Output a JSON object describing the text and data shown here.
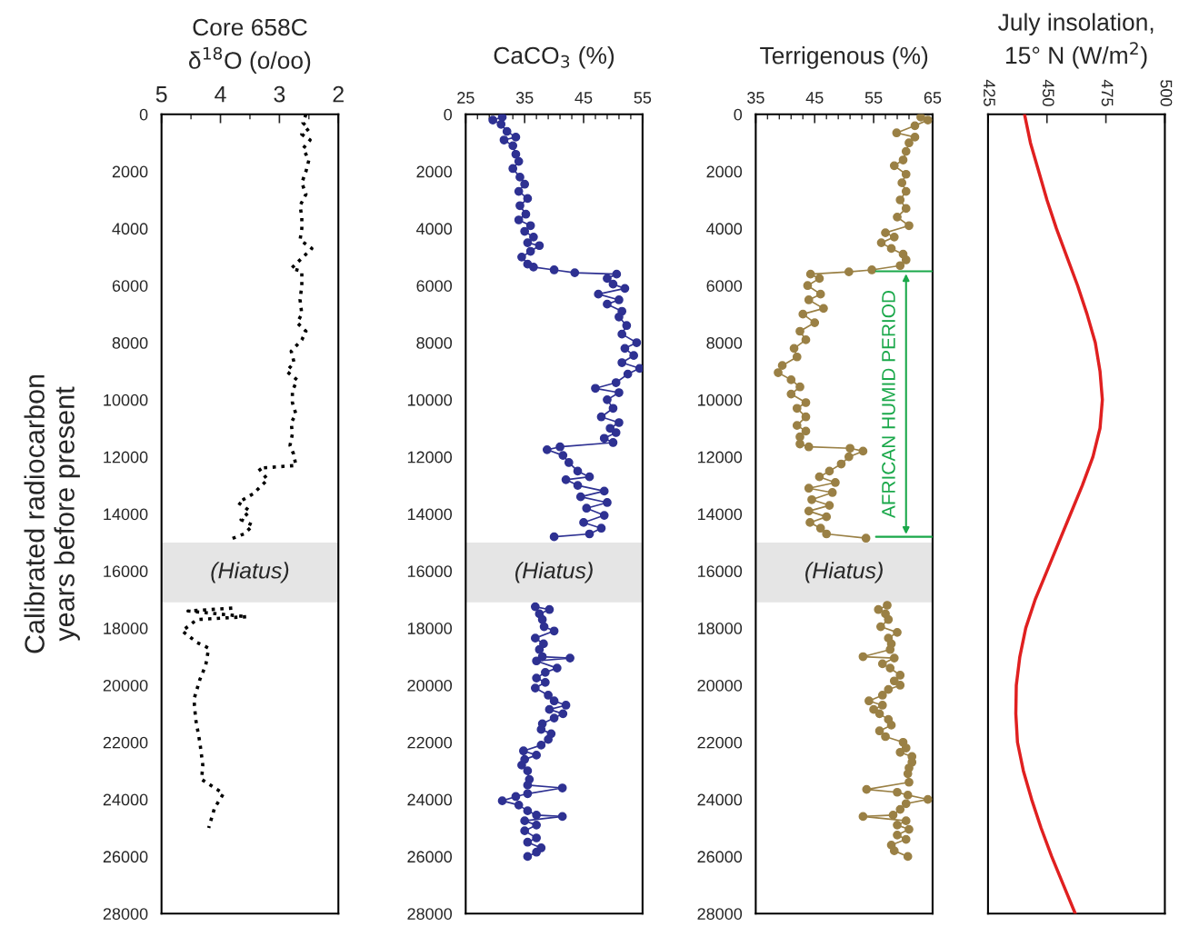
{
  "chart_data": [
    {
      "type": "line",
      "title": "Core 658C\nδ$^{18}$O (o/oo)",
      "ylabel": "Calibrated radiocarbon\nyears before present",
      "marker": "none",
      "line_style": "dotted",
      "xlim": [
        5,
        2
      ],
      "xticks": [
        5,
        4,
        3,
        2
      ],
      "ylim": [
        28000,
        0
      ],
      "yticks": [
        0,
        2000,
        4000,
        6000,
        8000,
        10000,
        12000,
        14000,
        16000,
        18000,
        20000,
        22000,
        24000,
        26000,
        28000
      ],
      "bands": [
        {
          "axis": "y",
          "from": 15000,
          "to": 17100,
          "label": "(Hiatus)",
          "color": "#e5e5e5"
        }
      ],
      "series": [
        {
          "color": "#000000",
          "x": [
            2.55,
            2.6,
            2.5,
            2.62,
            2.48,
            2.6,
            2.5,
            2.55,
            2.62,
            2.55,
            2.65,
            2.62,
            2.62,
            2.65,
            2.45,
            2.6,
            2.8,
            2.62,
            2.62,
            2.65,
            2.62,
            2.7,
            2.55,
            2.62,
            2.8,
            2.75,
            2.88,
            2.7,
            2.78,
            2.78,
            2.72,
            2.8,
            2.78,
            2.82,
            2.76,
            2.72,
            3.35,
            3.2,
            3.35,
            3.45,
            3.7,
            3.5,
            3.65,
            3.45,
            3.6,
            3.85,
            null,
            3.8,
            4.55,
            3.55,
            4.4,
            4.65,
            4.4,
            4.2,
            4.25,
            4.35,
            4.45,
            4.42,
            4.35,
            4.3,
            4.32,
            3.95,
            4.1,
            4.2
          ],
          "values": [
            0,
            300,
            500,
            700,
            900,
            1200,
            1600,
            2000,
            2400,
            2800,
            3200,
            3600,
            4000,
            4400,
            4700,
            5000,
            5400,
            5500,
            6000,
            6500,
            7000,
            7300,
            7600,
            7900,
            8300,
            8700,
            9000,
            9300,
            9700,
            10100,
            10500,
            10800,
            11200,
            11600,
            11900,
            12300,
            12400,
            12800,
            13100,
            13300,
            13600,
            13900,
            14200,
            14400,
            14700,
            14900,
            null,
            17300,
            17400,
            17600,
            17700,
            18100,
            18500,
            18700,
            19300,
            19800,
            20500,
            21200,
            22000,
            22800,
            23300,
            23800,
            24300,
            25000
          ]
        }
      ]
    },
    {
      "type": "line",
      "title": "CaCO$_{3}$ (%)",
      "marker": "circle",
      "line_style": "solid",
      "xlim": [
        25,
        55
      ],
      "xticks": [
        25,
        35,
        45,
        55
      ],
      "ylim": [
        28000,
        0
      ],
      "yticks": [
        0,
        2000,
        4000,
        6000,
        8000,
        10000,
        12000,
        14000,
        16000,
        18000,
        20000,
        22000,
        24000,
        26000,
        28000
      ],
      "bands": [
        {
          "axis": "y",
          "from": 15000,
          "to": 17100,
          "label": "(Hiatus)",
          "color": "#e5e5e5"
        }
      ],
      "series": [
        {
          "color": "#2e3192",
          "x": [
            31.2,
            29.6,
            31.0,
            32.0,
            33.5,
            31.5,
            33.0,
            33.5,
            34.0,
            33.0,
            34.2,
            35.0,
            34.0,
            35.5,
            34.2,
            35.2,
            34.0,
            36.0,
            35.0,
            36.5,
            35.5,
            37.5,
            36.0,
            34.5,
            35.5,
            36.5,
            40.0,
            43.5,
            50.6,
            49.0,
            50.0,
            52.0,
            47.5,
            51.0,
            49.0,
            51.5,
            51.0,
            52.3,
            51.5,
            54.0,
            52.0,
            53.5,
            51.5,
            54.5,
            52.5,
            50.5,
            47.0,
            51.0,
            49.0,
            50.0,
            48.0,
            51.0,
            49.5,
            50.5,
            48.5,
            50.0,
            41.0,
            38.8,
            41.5,
            42.5,
            44.0,
            46.0,
            42.0,
            44.0,
            48.5,
            44.5,
            49.0,
            45.5,
            48.5,
            45.0,
            48.0,
            46.0,
            40.0,
            null,
            36.8,
            39.2,
            37.5,
            38.0,
            38.3,
            40.0,
            36.8,
            38.2,
            37.5,
            38.0,
            42.7,
            37.0,
            40.5,
            38.5,
            37.0,
            38.5,
            36.8,
            39.0,
            40.0,
            42.0,
            39.2,
            41.5,
            40.0,
            38.0,
            37.8,
            39.5,
            39.0,
            37.8,
            34.8,
            37.0,
            35.0,
            34.5,
            35.5,
            35.8,
            35.5,
            41.4,
            35.5,
            33.5,
            31.2,
            34.0,
            35.5,
            37.0,
            41.4,
            35.0,
            37.0,
            35.0,
            37.0,
            35.5,
            37.8,
            37.0,
            35.5
          ],
          "values": [
            100,
            200,
            350,
            600,
            800,
            900,
            1100,
            1400,
            1650,
            1900,
            2200,
            2450,
            2700,
            2950,
            3200,
            3500,
            3700,
            3900,
            4100,
            4300,
            4500,
            4600,
            4800,
            5000,
            5250,
            5350,
            5450,
            5550,
            5600,
            5750,
            5950,
            6100,
            6300,
            6500,
            6650,
            6900,
            7100,
            7400,
            7700,
            8000,
            8200,
            8450,
            8700,
            8900,
            9100,
            9400,
            9600,
            9750,
            10000,
            10300,
            10600,
            10800,
            11000,
            11150,
            11350,
            11500,
            11650,
            11750,
            11950,
            12200,
            12500,
            12700,
            12800,
            13000,
            13200,
            13400,
            13600,
            13800,
            14050,
            14300,
            14500,
            14700,
            14800,
            null,
            17250,
            17350,
            17500,
            17700,
            17950,
            18100,
            18350,
            18550,
            18750,
            19000,
            19050,
            19150,
            19400,
            19550,
            19750,
            19900,
            20100,
            20350,
            20550,
            20700,
            20850,
            21000,
            21150,
            21350,
            21550,
            21700,
            21900,
            22100,
            22300,
            22450,
            22600,
            22800,
            23000,
            23300,
            23500,
            23600,
            23800,
            23900,
            24050,
            24200,
            24400,
            24550,
            24600,
            24750,
            24900,
            25100,
            25350,
            25500,
            25700,
            25850,
            26000
          ]
        }
      ]
    },
    {
      "type": "line",
      "title": "Terrigenous (%)",
      "marker": "circle",
      "line_style": "solid",
      "xlim": [
        35,
        65
      ],
      "xticks": [
        35,
        45,
        55,
        65
      ],
      "ylim": [
        28000,
        0
      ],
      "yticks": [
        0,
        2000,
        4000,
        6000,
        8000,
        10000,
        12000,
        14000,
        16000,
        18000,
        20000,
        22000,
        24000,
        26000,
        28000
      ],
      "bands": [
        {
          "axis": "y",
          "from": 15000,
          "to": 17100,
          "label": "(Hiatus)",
          "color": "#e5e5e5"
        }
      ],
      "ref_lines": [
        {
          "axis": "y",
          "value": 5500,
          "color": "#1aa84a",
          "line_style": "solid"
        },
        {
          "axis": "y",
          "value": 14800,
          "color": "#1aa84a",
          "line_style": "solid"
        }
      ],
      "annotations": [
        "AFRICAN HUMID PERIOD"
      ],
      "series": [
        {
          "color": "#9a8045",
          "x": [
            63.0,
            64.2,
            62.0,
            58.9,
            62.0,
            61.0,
            60.5,
            60.0,
            58.5,
            60.5,
            59.8,
            60.5,
            59.5,
            60.5,
            59.0,
            61.0,
            57.0,
            58.5,
            56.3,
            58.0,
            60.0,
            60.5,
            59.5,
            54.7,
            50.8,
            44.3,
            45.8,
            43.8,
            46.0,
            44.0,
            46.5,
            43.0,
            45.0,
            42.5,
            43.5,
            41.5,
            42.0,
            39.5,
            38.8,
            41.0,
            42.5,
            41.0,
            43.5,
            42.0,
            43.5,
            42.0,
            43.5,
            42.5,
            42.5,
            44.0,
            51.0,
            53.2,
            50.8,
            49.5,
            47.5,
            45.8,
            48.5,
            44.0,
            48.0,
            44.5,
            47.5,
            44.0,
            47.0,
            44.2,
            46.0,
            47.0,
            53.7,
            null,
            57.3,
            55.8,
            57.0,
            57.5,
            56.2,
            59.0,
            57.5,
            58.0,
            57.8,
            53.2,
            58.5,
            56.5,
            57.8,
            59.5,
            58.5,
            59.5,
            57.5,
            56.5,
            54.2,
            56.5,
            55.0,
            56.0,
            57.5,
            58.0,
            56.0,
            57.0,
            60.0,
            60.5,
            59.5,
            61.5,
            61.5,
            61.0,
            60.8,
            61.0,
            53.8,
            59.0,
            60.8,
            64.2,
            60.5,
            59.5,
            58.3,
            53.2,
            60.5,
            59.0,
            61.0,
            59.0,
            60.5,
            58.0,
            58.5,
            60.8
          ],
          "values": [
            100,
            200,
            400,
            650,
            800,
            1000,
            1300,
            1600,
            1800,
            2100,
            2400,
            2700,
            3000,
            3300,
            3600,
            3900,
            4150,
            4300,
            4500,
            4700,
            4900,
            5100,
            5300,
            5450,
            5520,
            5600,
            5750,
            6000,
            6300,
            6500,
            6800,
            7000,
            7300,
            7600,
            7900,
            8200,
            8500,
            8800,
            9050,
            9300,
            9550,
            9800,
            10100,
            10300,
            10600,
            10900,
            11100,
            11300,
            11550,
            11650,
            11700,
            11800,
            12000,
            12250,
            12500,
            12700,
            12900,
            13100,
            13250,
            13500,
            13700,
            13900,
            14100,
            14300,
            14500,
            14700,
            14850,
            null,
            17200,
            17350,
            17500,
            17700,
            17950,
            18150,
            18350,
            18550,
            18750,
            19000,
            19050,
            19250,
            19400,
            19650,
            19850,
            20000,
            20150,
            20350,
            20550,
            20700,
            20850,
            21000,
            21200,
            21400,
            21600,
            21800,
            22000,
            22200,
            22350,
            22500,
            22700,
            22900,
            23100,
            23400,
            23650,
            23750,
            23850,
            24000,
            24150,
            24350,
            24550,
            24600,
            24750,
            24900,
            25050,
            25250,
            25400,
            25600,
            25800,
            26000
          ]
        }
      ]
    },
    {
      "type": "line",
      "title": "July insolation,\n15° N (W/m$^{2}$)",
      "marker": "none",
      "line_style": "solid",
      "tick_labels": "x",
      "xlim": [
        425,
        500
      ],
      "xticks": [
        425,
        450,
        475,
        500
      ],
      "ylim": [
        28000,
        0
      ],
      "yticks": [
        0,
        2000,
        4000,
        6000,
        8000,
        10000,
        12000,
        14000,
        16000,
        18000,
        20000,
        22000,
        24000,
        26000,
        28000
      ],
      "series": [
        {
          "color": "#e02020",
          "x": [
            440.5,
            443,
            446.5,
            450,
            454,
            458.5,
            463,
            467,
            470.5,
            472.5,
            473.5,
            472.5,
            469.5,
            465,
            460,
            455,
            450,
            445,
            441,
            438.5,
            437,
            436.8,
            437.5,
            440,
            443.5,
            447.5,
            452,
            457,
            462
          ],
          "values": [
            0,
            1000,
            2000,
            3000,
            4000,
            5000,
            6000,
            7000,
            8000,
            9000,
            10000,
            11000,
            12000,
            13000,
            14000,
            15000,
            16000,
            17000,
            18000,
            19000,
            20000,
            21000,
            22000,
            23000,
            24000,
            25000,
            26000,
            27000,
            28000
          ]
        }
      ]
    }
  ]
}
